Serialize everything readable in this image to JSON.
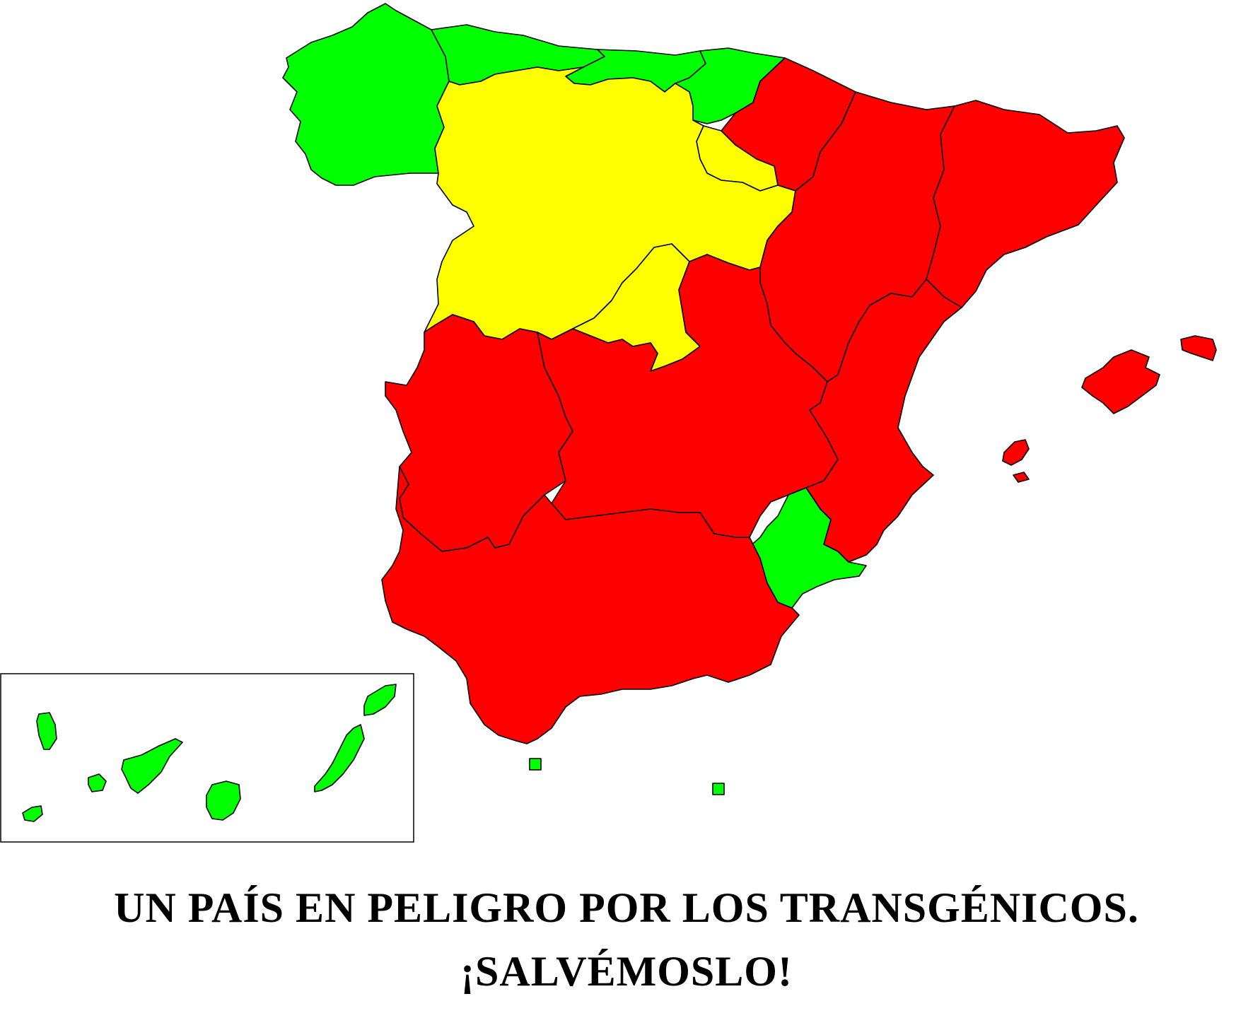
{
  "title": "UN PAÍS EN PELIGRO POR LOS TRANSGÉNICOS.",
  "subtitle": "¡SALVÉMOSLO!",
  "colors": {
    "green": "#00ff00",
    "yellow": "#ffff00",
    "red": "#ff0000",
    "border": "#000000"
  },
  "regions": [
    {
      "name": "Galicia",
      "status": "green"
    },
    {
      "name": "Asturias",
      "status": "green"
    },
    {
      "name": "Cantabria",
      "status": "green"
    },
    {
      "name": "País Vasco",
      "status": "green"
    },
    {
      "name": "Navarra",
      "status": "red"
    },
    {
      "name": "La Rioja",
      "status": "yellow"
    },
    {
      "name": "Castilla y León",
      "status": "yellow"
    },
    {
      "name": "Madrid",
      "status": "yellow"
    },
    {
      "name": "Aragón",
      "status": "red"
    },
    {
      "name": "Cataluña",
      "status": "red"
    },
    {
      "name": "Extremadura",
      "status": "red"
    },
    {
      "name": "Castilla-La Mancha",
      "status": "red"
    },
    {
      "name": "Comunidad Valenciana",
      "status": "red"
    },
    {
      "name": "Andalucía",
      "status": "red"
    },
    {
      "name": "Murcia",
      "status": "green"
    },
    {
      "name": "Islas Baleares",
      "status": "red"
    },
    {
      "name": "Islas Canarias",
      "status": "green"
    },
    {
      "name": "Ceuta",
      "status": "green"
    },
    {
      "name": "Melilla",
      "status": "green"
    }
  ]
}
